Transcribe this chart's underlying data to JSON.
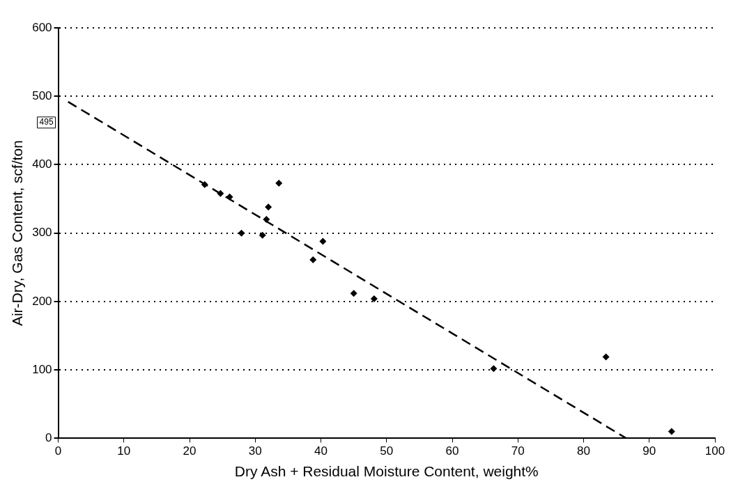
{
  "chart_data": {
    "type": "scatter",
    "xlabel": "Dry Ash + Residual Moisture Content, weight%",
    "ylabel": "Air-Dry, Gas Content, scf/ton",
    "xlim": [
      0,
      100
    ],
    "xticks": [
      0,
      10,
      20,
      30,
      40,
      50,
      60,
      70,
      80,
      90,
      100
    ],
    "ylim": [
      0,
      600
    ],
    "yticks": [
      0,
      100,
      200,
      300,
      400,
      500,
      600
    ],
    "grid": "y",
    "legend": false,
    "marker": "diamond",
    "series": [
      {
        "color": "#000000",
        "x": [
          22.3,
          24.7,
          26.1,
          27.9,
          31.1,
          31.7,
          32.0,
          33.6,
          38.8,
          40.3,
          45.0,
          48.1,
          66.3,
          83.4,
          93.4
        ],
        "values": [
          371,
          358,
          353,
          300,
          297,
          320,
          338,
          373,
          261,
          288,
          212,
          204,
          102,
          119,
          10
        ]
      },
      {
        "type": "line",
        "line_style": "dashed",
        "marker": "none",
        "color": "#000000",
        "x": [
          1.5,
          86.5
        ],
        "values": [
          492,
          0
        ]
      }
    ],
    "annotations": [
      "495"
    ]
  }
}
